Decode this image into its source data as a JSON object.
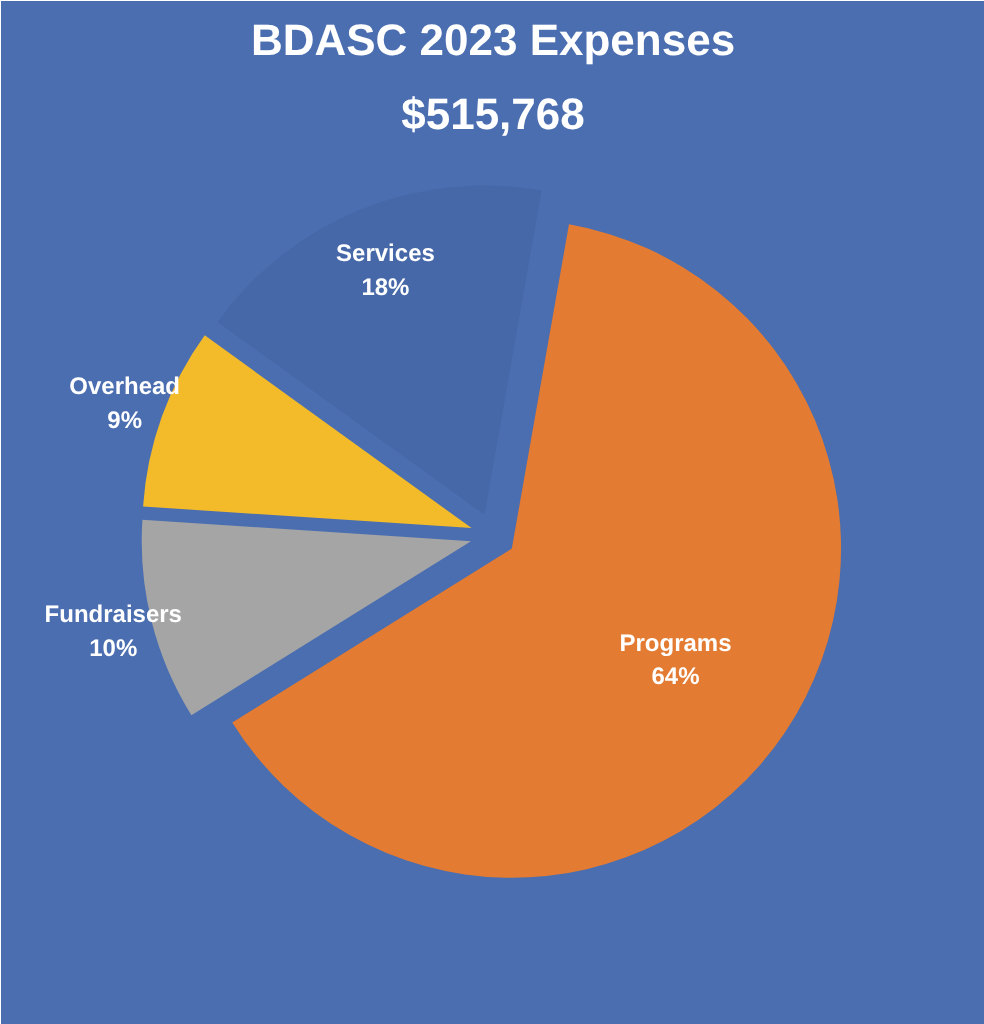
{
  "chart_data": {
    "type": "pie",
    "title": "BDASC 2023 Expenses",
    "subtitle": "$515,768",
    "categories": [
      "Programs",
      "Fundraisers",
      "Overhead",
      "Services"
    ],
    "values": [
      64,
      10,
      9,
      18
    ],
    "colors": [
      "#e37b32",
      "#a5a5a5",
      "#f3bb2a",
      "#4668a8"
    ],
    "value_labels": [
      "64%",
      "10%",
      "9%",
      "18%"
    ]
  }
}
